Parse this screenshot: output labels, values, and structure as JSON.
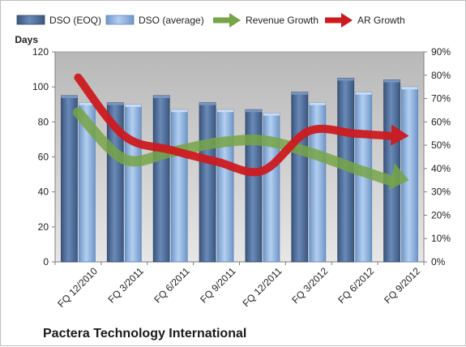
{
  "chart_data": {
    "type": "bar",
    "title": "Pactera Technology International",
    "ylabel": "Days",
    "ylim": [
      0,
      120
    ],
    "yticks": [
      0,
      20,
      40,
      60,
      80,
      100,
      120
    ],
    "y2lim": [
      0,
      90
    ],
    "y2ticks": [
      "0%",
      "10%",
      "20%",
      "30%",
      "40%",
      "50%",
      "60%",
      "70%",
      "80%",
      "90%"
    ],
    "categories": [
      "FQ 12/2010",
      "FQ 3/2011",
      "FQ 6/2011",
      "FQ 9/2011",
      "FQ 12/2011",
      "FQ 3/2012",
      "FQ 6/2012",
      "FQ 9/2012"
    ],
    "series": [
      {
        "name": "DSO (EOQ)",
        "kind": "bar",
        "axis": "left",
        "color": "#4f6d98",
        "values": [
          95,
          91,
          95,
          91,
          87,
          97,
          105,
          104
        ]
      },
      {
        "name": "DSO (average)",
        "kind": "bar",
        "axis": "left",
        "color": "#8eb4e3",
        "values": [
          91,
          90,
          87,
          87,
          85,
          91,
          97,
          100
        ]
      },
      {
        "name": "Revenue Growth",
        "kind": "arrow-line",
        "axis": "right",
        "color": "#77a446",
        "values": [
          64,
          44,
          47,
          51,
          52,
          47,
          40,
          35
        ]
      },
      {
        "name": "AR Growth",
        "kind": "arrow-line",
        "axis": "right",
        "color": "#cc1a1f",
        "values": [
          79,
          54,
          48,
          43,
          39,
          56,
          55,
          54
        ]
      }
    ],
    "grid": false,
    "legend_position": "top"
  },
  "colors": {
    "plot_background": "#c8c8c8",
    "bar_dark": "#4f6d98",
    "bar_light": "#8eb4e3",
    "revenue_arrow": "#77a446",
    "ar_arrow": "#cc1a1f"
  }
}
